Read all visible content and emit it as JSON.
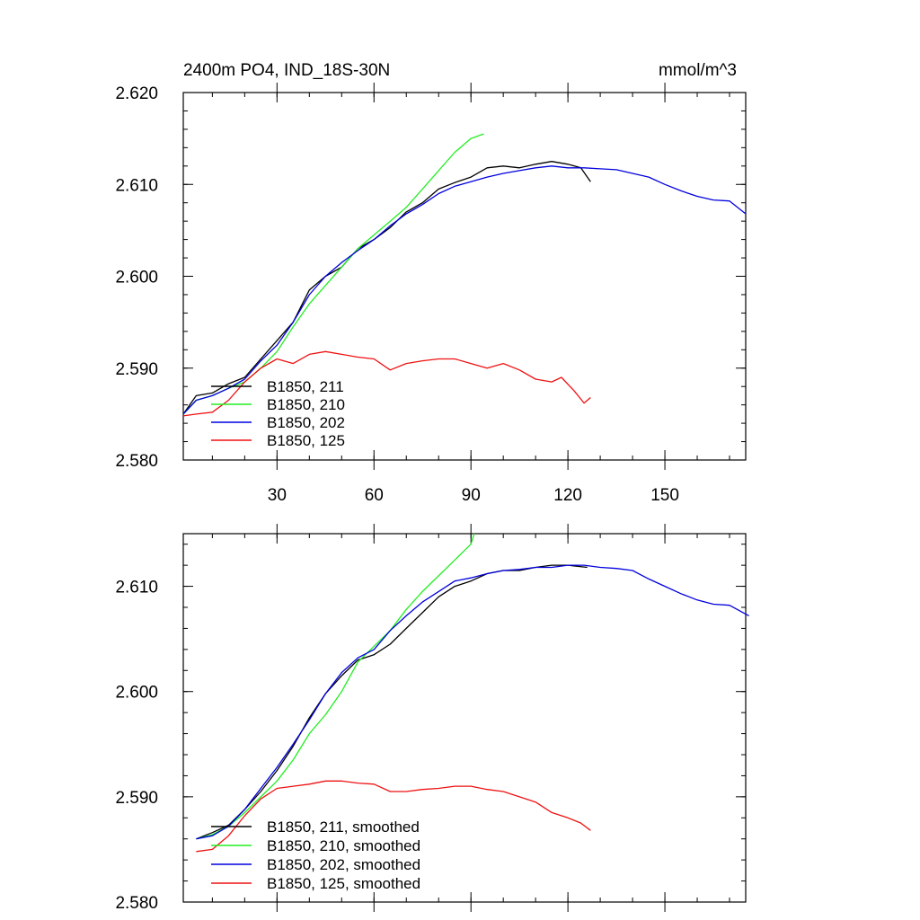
{
  "colors": {
    "B1850_211": "#000000",
    "B1850_210": "#22ee22",
    "B1850_202": "#0000dd",
    "B1850_125": "#ee1111"
  },
  "chart_data": [
    {
      "type": "line",
      "title": "2400m PO4, IND_18S-30N",
      "units": "mmol/m^3",
      "xlim": [
        1,
        175
      ],
      "ylim": [
        2.58,
        2.62
      ],
      "xticks": [
        30,
        60,
        90,
        120,
        150
      ],
      "xtick_labels": [
        "30",
        "60",
        "90",
        "120",
        "150"
      ],
      "yticks": [
        2.58,
        2.59,
        2.6,
        2.61,
        2.62
      ],
      "ytick_labels": [
        "2.580",
        "2.590",
        "2.600",
        "2.610",
        "2.620"
      ],
      "legend_position": "bottom-left",
      "grid": false,
      "series": [
        {
          "name": "B1850, 211",
          "color_key": "B1850_211",
          "points": [
            [
              1,
              2.585
            ],
            [
              5,
              2.587
            ],
            [
              10,
              2.5873
            ],
            [
              15,
              2.5883
            ],
            [
              20,
              2.589
            ],
            [
              25,
              2.591
            ],
            [
              30,
              2.593
            ],
            [
              35,
              2.595
            ],
            [
              40,
              2.5985
            ],
            [
              45,
              2.6
            ],
            [
              50,
              2.601
            ],
            [
              55,
              2.603
            ],
            [
              60,
              2.604
            ],
            [
              65,
              2.6053
            ],
            [
              70,
              2.607
            ],
            [
              75,
              2.608
            ],
            [
              80,
              2.6095
            ],
            [
              85,
              2.6102
            ],
            [
              90,
              2.6108
            ],
            [
              95,
              2.6118
            ],
            [
              100,
              2.612
            ],
            [
              105,
              2.6118
            ],
            [
              110,
              2.6122
            ],
            [
              115,
              2.6125
            ],
            [
              120,
              2.6122
            ],
            [
              124,
              2.6118
            ],
            [
              127,
              2.6103
            ]
          ]
        },
        {
          "name": "B1850, 210",
          "color_key": "B1850_210",
          "points": [
            [
              1,
              2.585
            ],
            [
              5,
              2.5865
            ],
            [
              10,
              2.587
            ],
            [
              15,
              2.5878
            ],
            [
              20,
              2.5885
            ],
            [
              25,
              2.59
            ],
            [
              30,
              2.5918
            ],
            [
              35,
              2.5945
            ],
            [
              40,
              2.597
            ],
            [
              45,
              2.599
            ],
            [
              50,
              2.601
            ],
            [
              55,
              2.603
            ],
            [
              60,
              2.6045
            ],
            [
              65,
              2.606
            ],
            [
              70,
              2.6075
            ],
            [
              75,
              2.6095
            ],
            [
              80,
              2.6115
            ],
            [
              85,
              2.6135
            ],
            [
              90,
              2.615
            ],
            [
              94,
              2.6155
            ]
          ]
        },
        {
          "name": "B1850, 202",
          "color_key": "B1850_202",
          "points": [
            [
              1,
              2.585
            ],
            [
              5,
              2.5865
            ],
            [
              10,
              2.587
            ],
            [
              15,
              2.5878
            ],
            [
              20,
              2.5888
            ],
            [
              25,
              2.5908
            ],
            [
              30,
              2.5925
            ],
            [
              35,
              2.595
            ],
            [
              40,
              2.598
            ],
            [
              45,
              2.6
            ],
            [
              50,
              2.6015
            ],
            [
              55,
              2.6028
            ],
            [
              60,
              2.604
            ],
            [
              65,
              2.6055
            ],
            [
              70,
              2.6068
            ],
            [
              75,
              2.6078
            ],
            [
              80,
              2.609
            ],
            [
              85,
              2.6098
            ],
            [
              90,
              2.6103
            ],
            [
              95,
              2.6108
            ],
            [
              100,
              2.6112
            ],
            [
              105,
              2.6115
            ],
            [
              110,
              2.6118
            ],
            [
              115,
              2.612
            ],
            [
              120,
              2.6118
            ],
            [
              125,
              2.6118
            ],
            [
              130,
              2.6117
            ],
            [
              135,
              2.6116
            ],
            [
              140,
              2.6112
            ],
            [
              145,
              2.6108
            ],
            [
              150,
              2.61
            ],
            [
              155,
              2.6093
            ],
            [
              160,
              2.6087
            ],
            [
              165,
              2.6083
            ],
            [
              170,
              2.6082
            ],
            [
              175,
              2.6068
            ]
          ]
        },
        {
          "name": "B1850, 125",
          "color_key": "B1850_125",
          "points": [
            [
              1,
              2.5848
            ],
            [
              5,
              2.585
            ],
            [
              10,
              2.5852
            ],
            [
              15,
              2.5865
            ],
            [
              20,
              2.5885
            ],
            [
              25,
              2.59
            ],
            [
              30,
              2.591
            ],
            [
              35,
              2.5905
            ],
            [
              40,
              2.5915
            ],
            [
              45,
              2.5918
            ],
            [
              50,
              2.5915
            ],
            [
              55,
              2.5912
            ],
            [
              60,
              2.591
            ],
            [
              65,
              2.5898
            ],
            [
              70,
              2.5905
            ],
            [
              75,
              2.5908
            ],
            [
              80,
              2.591
            ],
            [
              85,
              2.591
            ],
            [
              90,
              2.5905
            ],
            [
              95,
              2.59
            ],
            [
              100,
              2.5905
            ],
            [
              105,
              2.5898
            ],
            [
              110,
              2.5888
            ],
            [
              115,
              2.5885
            ],
            [
              118,
              2.589
            ],
            [
              122,
              2.5875
            ],
            [
              125,
              2.5862
            ],
            [
              127,
              2.5868
            ]
          ]
        }
      ]
    },
    {
      "type": "line",
      "title": "",
      "xlim": [
        1,
        175
      ],
      "ylim": [
        2.58,
        2.615
      ],
      "xticks": [
        30,
        60,
        90,
        120,
        150
      ],
      "xtick_labels": [],
      "yticks": [
        2.58,
        2.59,
        2.6,
        2.61
      ],
      "ytick_labels": [
        "2.580",
        "2.590",
        "2.600",
        "2.610"
      ],
      "legend_position": "bottom-left",
      "grid": false,
      "series": [
        {
          "name": "B1850, 211, smoothed",
          "color_key": "B1850_211",
          "points": [
            [
              5,
              2.586
            ],
            [
              10,
              2.5866
            ],
            [
              15,
              2.5873
            ],
            [
              20,
              2.5888
            ],
            [
              25,
              2.5905
            ],
            [
              30,
              2.5925
            ],
            [
              35,
              2.5948
            ],
            [
              40,
              2.5975
            ],
            [
              45,
              2.5998
            ],
            [
              50,
              2.6015
            ],
            [
              55,
              2.603
            ],
            [
              60,
              2.6035
            ],
            [
              65,
              2.6045
            ],
            [
              70,
              2.606
            ],
            [
              75,
              2.6075
            ],
            [
              80,
              2.609
            ],
            [
              85,
              2.61
            ],
            [
              90,
              2.6105
            ],
            [
              95,
              2.6112
            ],
            [
              100,
              2.6115
            ],
            [
              105,
              2.6115
            ],
            [
              110,
              2.6118
            ],
            [
              115,
              2.612
            ],
            [
              120,
              2.612
            ],
            [
              126,
              2.6118
            ]
          ]
        },
        {
          "name": "B1850, 210, smoothed",
          "color_key": "B1850_210",
          "points": [
            [
              5,
              2.586
            ],
            [
              10,
              2.5864
            ],
            [
              15,
              2.5872
            ],
            [
              20,
              2.5885
            ],
            [
              25,
              2.59
            ],
            [
              30,
              2.5915
            ],
            [
              35,
              2.5935
            ],
            [
              40,
              2.596
            ],
            [
              45,
              2.5978
            ],
            [
              50,
              2.6
            ],
            [
              55,
              2.6028
            ],
            [
              60,
              2.6043
            ],
            [
              65,
              2.6058
            ],
            [
              70,
              2.6078
            ],
            [
              75,
              2.6095
            ],
            [
              80,
              2.611
            ],
            [
              85,
              2.6125
            ],
            [
              90,
              2.614
            ],
            [
              91,
              2.615
            ]
          ]
        },
        {
          "name": "B1850, 202, smoothed",
          "color_key": "B1850_202",
          "points": [
            [
              5,
              2.586
            ],
            [
              10,
              2.5863
            ],
            [
              15,
              2.5872
            ],
            [
              20,
              2.5888
            ],
            [
              25,
              2.5908
            ],
            [
              30,
              2.5928
            ],
            [
              35,
              2.595
            ],
            [
              40,
              2.5973
            ],
            [
              45,
              2.5998
            ],
            [
              50,
              2.6018
            ],
            [
              55,
              2.6032
            ],
            [
              60,
              2.604
            ],
            [
              65,
              2.6058
            ],
            [
              70,
              2.6072
            ],
            [
              75,
              2.6085
            ],
            [
              80,
              2.6095
            ],
            [
              85,
              2.6105
            ],
            [
              90,
              2.6108
            ],
            [
              95,
              2.6112
            ],
            [
              100,
              2.6115
            ],
            [
              105,
              2.6116
            ],
            [
              110,
              2.6118
            ],
            [
              115,
              2.6118
            ],
            [
              120,
              2.612
            ],
            [
              125,
              2.612
            ],
            [
              130,
              2.6118
            ],
            [
              135,
              2.6117
            ],
            [
              140,
              2.6115
            ],
            [
              145,
              2.6107
            ],
            [
              150,
              2.61
            ],
            [
              155,
              2.6093
            ],
            [
              160,
              2.6087
            ],
            [
              165,
              2.6083
            ],
            [
              170,
              2.6082
            ],
            [
              176,
              2.6072
            ]
          ]
        },
        {
          "name": "B1850, 125, smoothed",
          "color_key": "B1850_125",
          "points": [
            [
              5,
              2.5848
            ],
            [
              10,
              2.585
            ],
            [
              15,
              2.5863
            ],
            [
              20,
              2.5882
            ],
            [
              25,
              2.5898
            ],
            [
              30,
              2.5908
            ],
            [
              35,
              2.591
            ],
            [
              40,
              2.5912
            ],
            [
              45,
              2.5915
            ],
            [
              50,
              2.5915
            ],
            [
              55,
              2.5913
            ],
            [
              60,
              2.5912
            ],
            [
              65,
              2.5905
            ],
            [
              70,
              2.5905
            ],
            [
              75,
              2.5907
            ],
            [
              80,
              2.5908
            ],
            [
              85,
              2.591
            ],
            [
              90,
              2.591
            ],
            [
              95,
              2.5907
            ],
            [
              100,
              2.5905
            ],
            [
              105,
              2.59
            ],
            [
              110,
              2.5895
            ],
            [
              115,
              2.5885
            ],
            [
              120,
              2.588
            ],
            [
              124,
              2.5875
            ],
            [
              127,
              2.5868
            ]
          ]
        }
      ]
    }
  ]
}
